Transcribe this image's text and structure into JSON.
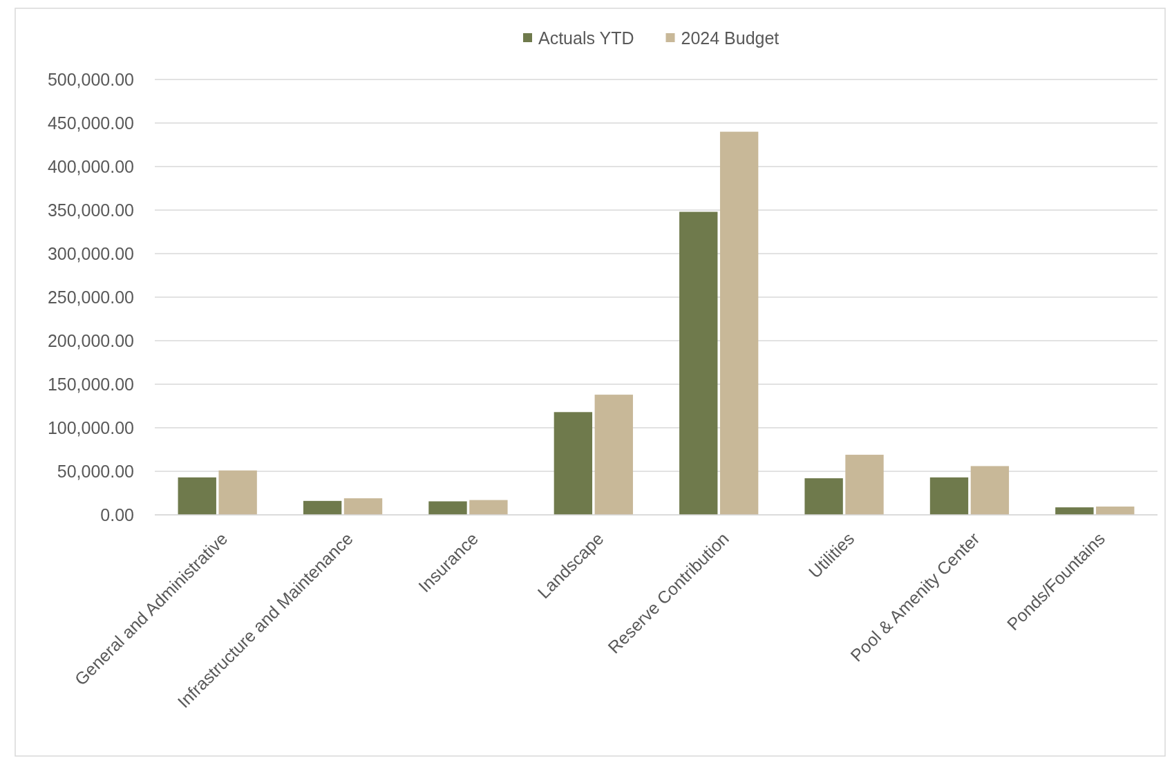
{
  "chart_data": {
    "type": "bar",
    "categories": [
      "General and Administrative",
      "Infrastructure and Maintenance",
      "Insurance",
      "Landscape",
      "Reserve Contribution",
      "Utilities",
      "Pool & Amenity Center",
      "Ponds/Fountains"
    ],
    "series": [
      {
        "name": "Actuals YTD",
        "color": "#6f7a4c",
        "values": [
          43000,
          16000,
          15500,
          118000,
          348000,
          42000,
          43000,
          8600
        ]
      },
      {
        "name": "2024 Budget",
        "color": "#c8b898",
        "values": [
          51000,
          19000,
          17000,
          138000,
          440000,
          69000,
          56000,
          9500
        ]
      }
    ],
    "ylim": [
      0,
      500000
    ],
    "yticks": [
      {
        "value": 0,
        "label": "0.00"
      },
      {
        "value": 50000,
        "label": "50,000.00"
      },
      {
        "value": 100000,
        "label": "100,000.00"
      },
      {
        "value": 150000,
        "label": "150,000.00"
      },
      {
        "value": 200000,
        "label": "200,000.00"
      },
      {
        "value": 250000,
        "label": "250,000.00"
      },
      {
        "value": 300000,
        "label": "300,000.00"
      },
      {
        "value": 350000,
        "label": "350,000.00"
      },
      {
        "value": 400000,
        "label": "400,000.00"
      },
      {
        "value": 450000,
        "label": "450,000.00"
      },
      {
        "value": 500000,
        "label": "500,000.00"
      }
    ],
    "grid": "y",
    "legend": "top"
  }
}
